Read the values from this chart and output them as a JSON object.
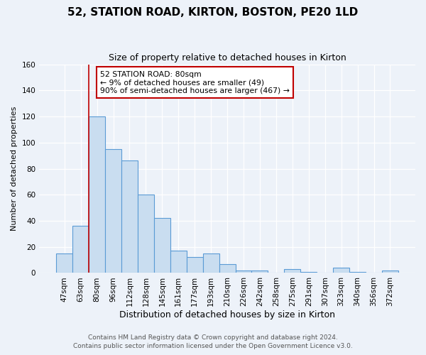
{
  "title": "52, STATION ROAD, KIRTON, BOSTON, PE20 1LD",
  "subtitle": "Size of property relative to detached houses in Kirton",
  "xlabel": "Distribution of detached houses by size in Kirton",
  "ylabel": "Number of detached properties",
  "bar_labels": [
    "47sqm",
    "63sqm",
    "80sqm",
    "96sqm",
    "112sqm",
    "128sqm",
    "145sqm",
    "161sqm",
    "177sqm",
    "193sqm",
    "210sqm",
    "226sqm",
    "242sqm",
    "258sqm",
    "275sqm",
    "291sqm",
    "307sqm",
    "323sqm",
    "340sqm",
    "356sqm",
    "372sqm"
  ],
  "bar_values": [
    15,
    36,
    120,
    95,
    86,
    60,
    42,
    17,
    12,
    15,
    7,
    2,
    2,
    0,
    3,
    1,
    0,
    4,
    1,
    0,
    2
  ],
  "bar_color": "#c9ddf0",
  "bar_edge_color": "#5b9bd5",
  "vline_color": "#c00000",
  "property_idx": 2,
  "ylim": [
    0,
    160
  ],
  "yticks": [
    0,
    20,
    40,
    60,
    80,
    100,
    120,
    140,
    160
  ],
  "annotation_line1": "52 STATION ROAD: 80sqm",
  "annotation_line2": "← 9% of detached houses are smaller (49)",
  "annotation_line3": "90% of semi-detached houses are larger (467) →",
  "annotation_box_color": "#c00000",
  "bg_color": "#edf2f9",
  "grid_color": "#ffffff",
  "footer_line1": "Contains HM Land Registry data © Crown copyright and database right 2024.",
  "footer_line2": "Contains public sector information licensed under the Open Government Licence v3.0.",
  "title_fontsize": 11,
  "subtitle_fontsize": 9,
  "xlabel_fontsize": 9,
  "ylabel_fontsize": 8,
  "tick_fontsize": 7.5,
  "footer_fontsize": 6.5
}
